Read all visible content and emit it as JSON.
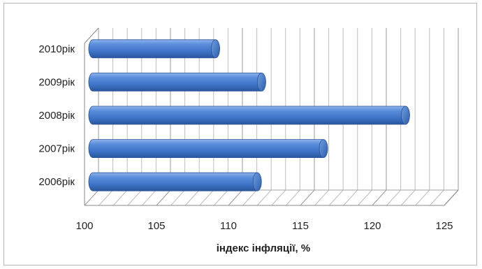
{
  "chart_data": {
    "type": "bar",
    "orientation": "horizontal",
    "categories": [
      "2006рік",
      "2007рік",
      "2008рік",
      "2009рік",
      "2010рік"
    ],
    "values": [
      112.0,
      116.6,
      122.3,
      112.3,
      109.1
    ],
    "xlabel": "індекс інфляції, %",
    "ylabel": "",
    "xlim": [
      100,
      125
    ],
    "ticks": [
      "100",
      "105",
      "110",
      "115",
      "120",
      "125"
    ],
    "grid": true,
    "style": "3d-cylinder",
    "bar_color": "#4a7fcf",
    "legend": "none"
  }
}
